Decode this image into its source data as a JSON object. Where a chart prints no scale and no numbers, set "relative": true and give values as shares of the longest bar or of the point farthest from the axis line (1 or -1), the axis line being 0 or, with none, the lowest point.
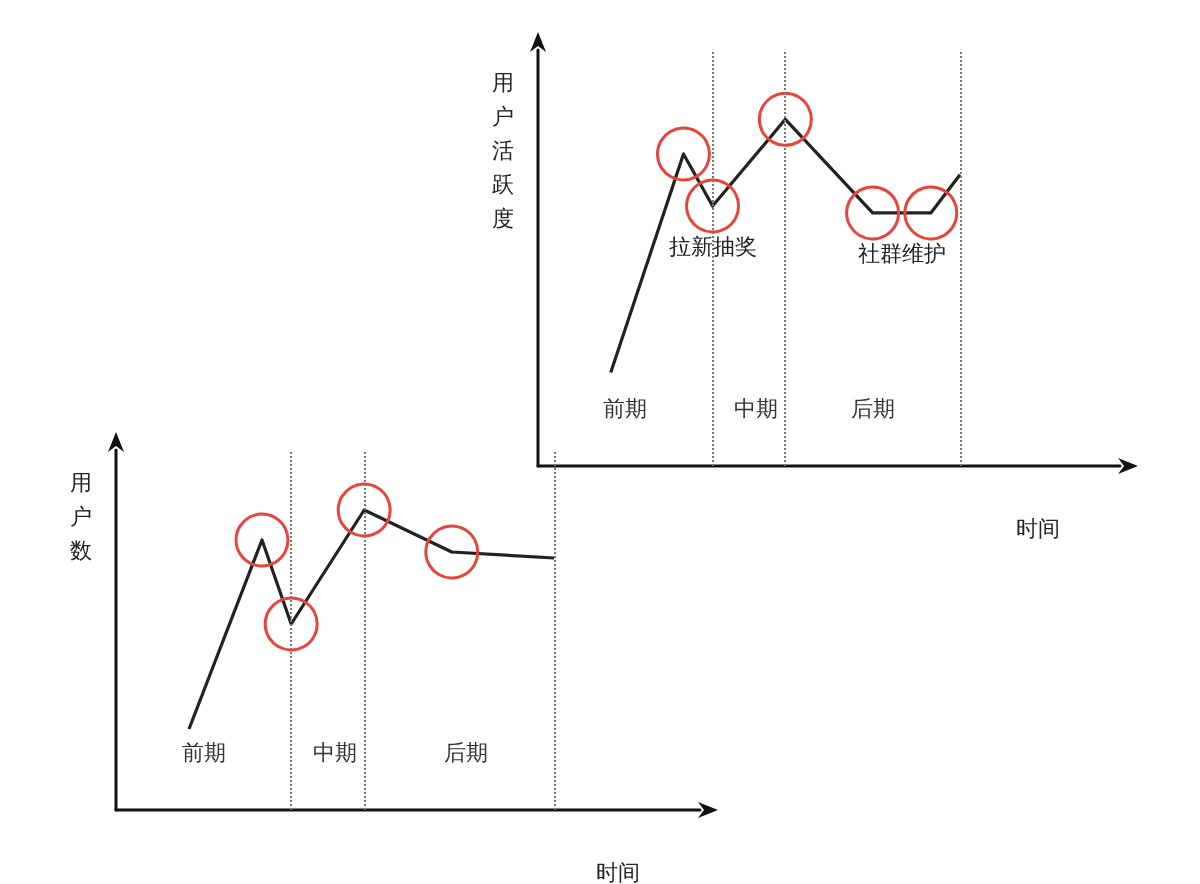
{
  "chart_data": [
    {
      "type": "line",
      "relative": true,
      "xlabel": "时间",
      "ylabel": "用户活跃度",
      "grid": "x",
      "marker": "circle",
      "categories": [
        null,
        null,
        null,
        null,
        null,
        null,
        null,
        null,
        null,
        null,
        null,
        null,
        null,
        null,
        null,
        null,
        null,
        null,
        null,
        null,
        null,
        null,
        null,
        null,
        null,
        null,
        null,
        null,
        null,
        null,
        null,
        null,
        null,
        null,
        null,
        null,
        null,
        null,
        null,
        null,
        null
      ],
      "series": [
        {
          "color": "#222222",
          "values": [
            null,
            null,
            null,
            null,
            null,
            0.27,
            null,
            null,
            null,
            null,
            0.9,
            null,
            0.75,
            null,
            null,
            null,
            null,
            1,
            null,
            null,
            null,
            null,
            null,
            0.73,
            null,
            null,
            null,
            0.73,
            null,
            0.84,
            null,
            null,
            null,
            null,
            null,
            null,
            null,
            null,
            null,
            null,
            null
          ],
          "colors": [
            null,
            null,
            null,
            null,
            null,
            null,
            null,
            null,
            null,
            null,
            "#e8443a",
            null,
            "#e8443a",
            null,
            null,
            null,
            null,
            "#e8443a",
            null,
            null,
            null,
            null,
            null,
            "#e8443a",
            null,
            null,
            null,
            "#e8443a",
            null,
            null,
            null,
            null,
            null,
            null,
            null,
            null,
            null,
            null,
            null,
            null,
            null
          ]
        }
      ],
      "annotations": [
        "前期",
        "中期",
        "后期",
        "拉新抽奖",
        "社群维护"
      ]
    },
    {
      "type": "line",
      "relative": true,
      "xlabel": "时间",
      "ylabel": "用户数",
      "grid": "x",
      "marker": "circle",
      "categories": [
        null,
        null,
        null,
        null,
        null,
        null,
        null,
        null,
        null,
        null,
        null,
        null,
        null,
        null,
        null,
        null,
        null,
        null,
        null,
        null,
        null,
        null,
        null,
        null,
        null,
        null,
        null,
        null,
        null,
        null,
        null,
        null,
        null,
        null,
        null,
        null,
        null,
        null,
        null,
        null,
        null
      ],
      "series": [
        {
          "color": "#222222",
          "values": [
            null,
            null,
            null,
            null,
            null,
            0.27,
            null,
            null,
            null,
            null,
            0.9,
            null,
            0.62,
            null,
            null,
            null,
            null,
            1,
            null,
            null,
            null,
            null,
            null,
            0.86,
            null,
            null,
            null,
            null,
            null,
            null,
            0.84,
            null,
            null,
            null,
            null,
            null,
            null,
            null,
            null,
            null,
            null
          ],
          "colors": [
            null,
            null,
            null,
            null,
            null,
            null,
            null,
            null,
            null,
            null,
            "#e8443a",
            null,
            "#e8443a",
            null,
            null,
            null,
            null,
            "#e8443a",
            null,
            null,
            null,
            null,
            null,
            "#e8443a",
            null,
            null,
            null,
            null,
            null,
            null,
            null,
            null,
            null,
            null,
            null,
            null,
            null,
            null,
            null,
            null,
            null
          ]
        }
      ],
      "annotations": [
        "前期",
        "中期",
        "后期"
      ]
    }
  ]
}
